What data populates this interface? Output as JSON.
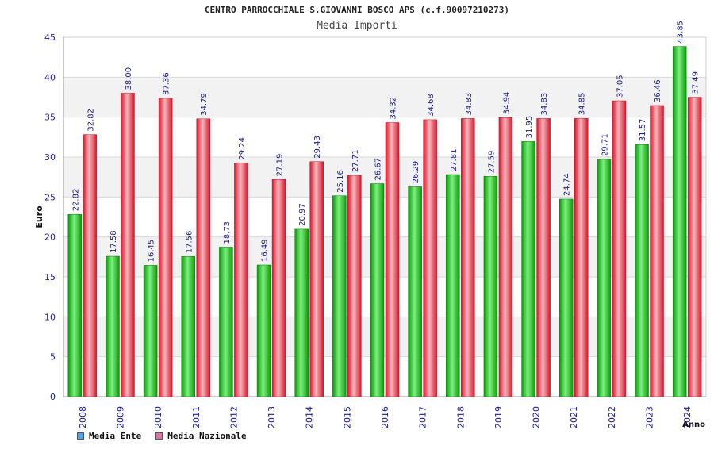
{
  "title": "CENTRO PARROCCHIALE S.GIOVANNI BOSCO APS (c.f.90097210273)",
  "subtitle": "Media Importi",
  "chart_data": {
    "type": "bar",
    "ylabel": "Euro",
    "xlabel": "Anno",
    "ylim": [
      0,
      45
    ],
    "yticks": [
      0,
      5,
      10,
      15,
      20,
      25,
      30,
      35,
      40,
      45
    ],
    "categories": [
      "2008",
      "2009",
      "2010",
      "2011",
      "2012",
      "2013",
      "2014",
      "2015",
      "2016",
      "2017",
      "2018",
      "2019",
      "2020",
      "2021",
      "2022",
      "2023",
      "2024"
    ],
    "series": [
      {
        "name": "Media Ente",
        "color": "#1fbf1f",
        "legend_color": "#5aa0e6",
        "values": [
          22.82,
          17.58,
          16.45,
          17.56,
          18.73,
          16.49,
          20.97,
          25.16,
          26.67,
          26.29,
          27.81,
          27.59,
          31.95,
          24.74,
          29.71,
          31.57,
          43.85
        ],
        "labels": [
          "22.82",
          "17.58",
          "16.45",
          "17.56",
          "18.73",
          "16.49",
          "20.97",
          "25.16",
          "26.67",
          "26.29",
          "27.81",
          "27.59",
          "31.95",
          "24.74",
          "29.71",
          "31.57",
          "43.85"
        ]
      },
      {
        "name": "Media Nazionale",
        "color": "#e8323c",
        "legend_color": "#e36fa8",
        "values": [
          32.82,
          38.0,
          37.36,
          34.79,
          29.24,
          27.19,
          29.43,
          27.71,
          34.32,
          34.68,
          34.83,
          34.94,
          34.83,
          34.85,
          37.05,
          36.46,
          37.49
        ],
        "labels": [
          "32.82",
          "38.00",
          "37.36",
          "34.79",
          "29.24",
          "27.19",
          "29.43",
          "27.71",
          "34.32",
          "34.68",
          "34.83",
          "34.94",
          "34.83",
          "34.85",
          "37.05",
          "36.46",
          "37.49"
        ]
      }
    ]
  }
}
